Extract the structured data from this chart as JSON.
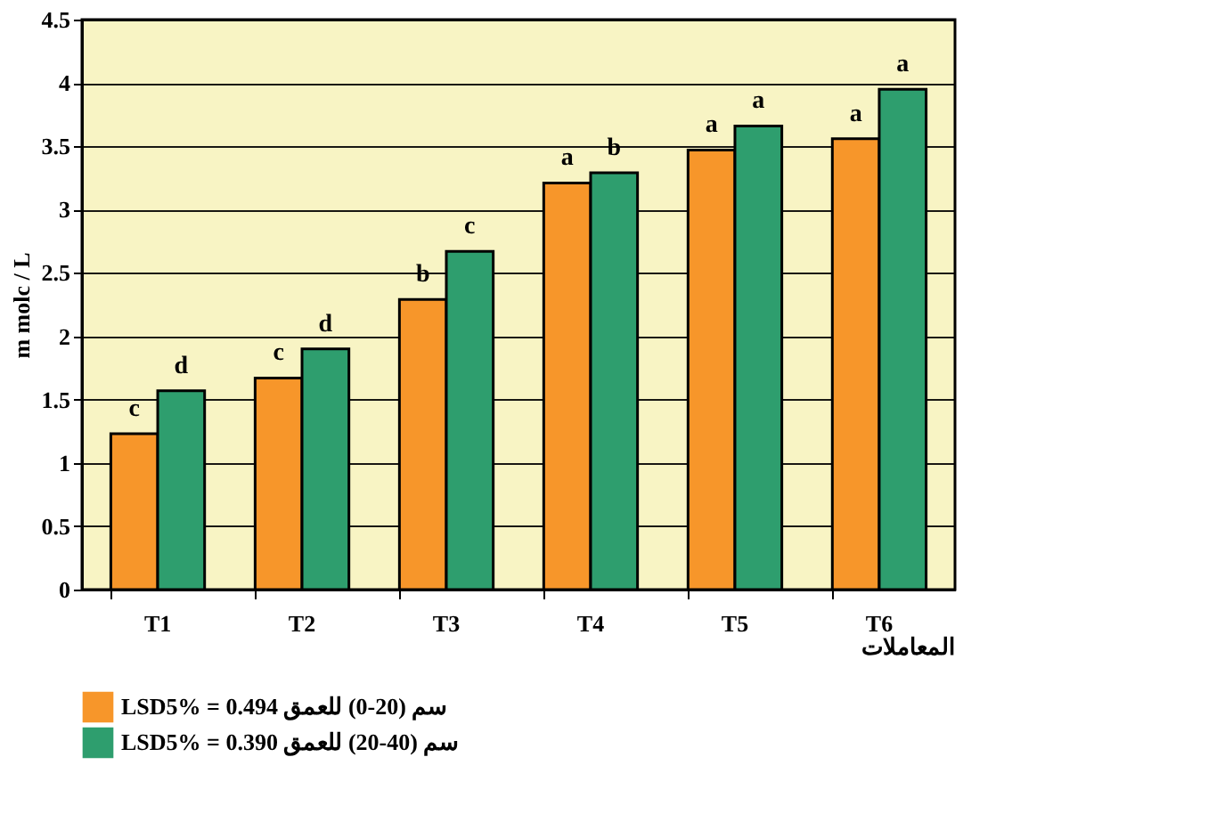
{
  "chart_data": {
    "type": "bar",
    "xlabel": "المعاملات",
    "ylabel": "m molc / L",
    "categories": [
      "T1",
      "T2",
      "T3",
      "T4",
      "T5",
      "T6"
    ],
    "series": [
      {
        "name": "LSD5% = 0.494 سم (20-0) للعمق",
        "color": "#f7962a",
        "values": [
          1.23,
          1.67,
          2.29,
          3.21,
          3.47,
          3.56
        ],
        "value_labels": [
          "c",
          "c",
          "b",
          "a",
          "a",
          "a"
        ]
      },
      {
        "name": "LSD5% = 0.390 سم (40-20) للعمق",
        "color": "#2e9e6e",
        "values": [
          1.57,
          1.9,
          2.67,
          3.29,
          3.66,
          3.95
        ],
        "value_labels": [
          "d",
          "d",
          "c",
          "b",
          "a",
          "a"
        ]
      }
    ],
    "ylim": [
      0,
      4.5
    ],
    "yticks": [
      0,
      0.5,
      1,
      1.5,
      2,
      2.5,
      3,
      3.5,
      4,
      4.5
    ],
    "grid": "y",
    "legend": "bottom"
  }
}
